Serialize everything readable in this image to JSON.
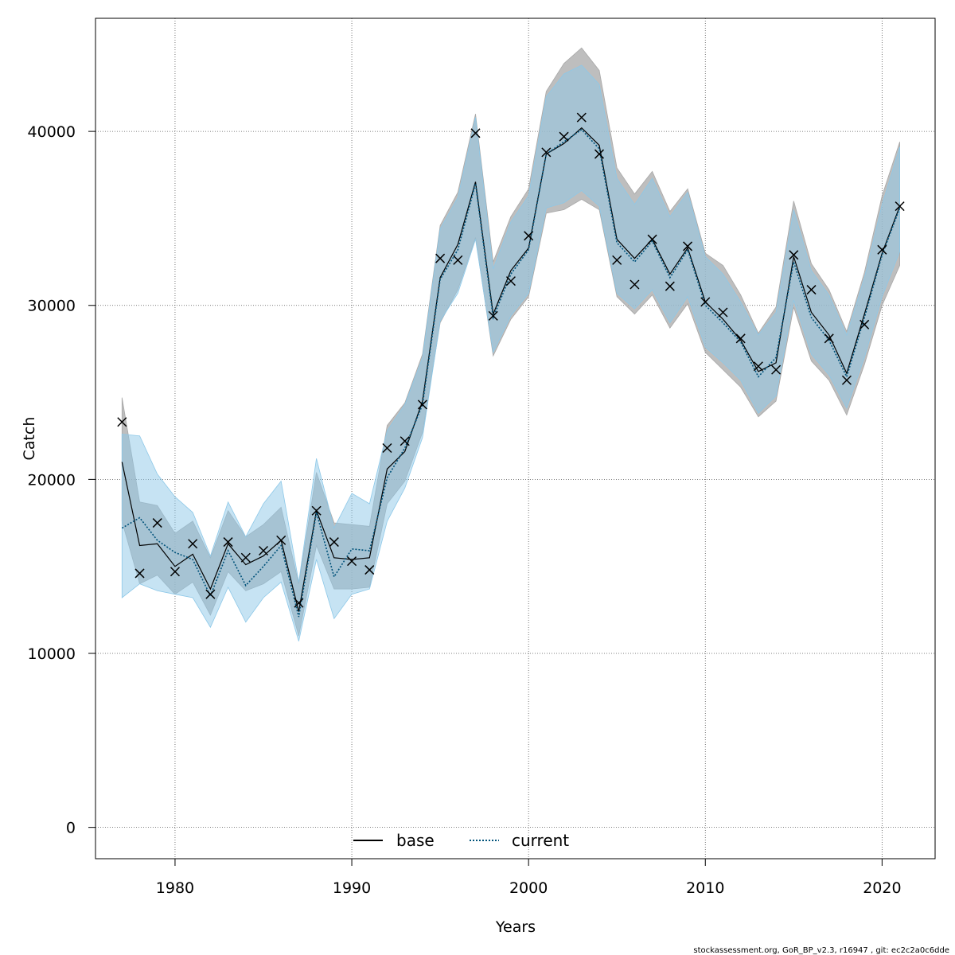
{
  "chart_data": {
    "type": "line",
    "xlabel": "Years",
    "ylabel": "Catch",
    "xlim": [
      1975.5,
      2023.0
    ],
    "ylim": [
      -1800,
      46500
    ],
    "x_ticks": [
      1980,
      1990,
      2000,
      2010,
      2020
    ],
    "y_ticks": [
      0,
      10000,
      20000,
      30000,
      40000
    ],
    "grid": true,
    "legend_position": "bottom-center",
    "x": [
      1977,
      1978,
      1979,
      1980,
      1981,
      1982,
      1983,
      1984,
      1985,
      1986,
      1987,
      1988,
      1989,
      1990,
      1991,
      1992,
      1993,
      1994,
      1995,
      1996,
      1997,
      1998,
      1999,
      2000,
      2001,
      2002,
      2003,
      2004,
      2005,
      2006,
      2007,
      2008,
      2009,
      2010,
      2011,
      2012,
      2013,
      2014,
      2015,
      2016,
      2017,
      2018,
      2019,
      2020,
      2021
    ],
    "series": [
      {
        "name": "base",
        "color": "#000000",
        "band_color": "#a8a8a8",
        "values": [
          21000,
          16200,
          16300,
          15000,
          15700,
          13700,
          16300,
          15100,
          15600,
          16500,
          12400,
          18200,
          15500,
          15400,
          15500,
          20600,
          21600,
          24500,
          31600,
          33500,
          37100,
          29500,
          32000,
          33300,
          38700,
          39300,
          40200,
          39200,
          33800,
          32700,
          33800,
          31800,
          33300,
          30200,
          29200,
          28000,
          26200,
          26700,
          32800,
          29600,
          28300,
          26100,
          29500,
          33000,
          35700
        ],
        "lower": [
          17600,
          14000,
          14500,
          13400,
          14100,
          12200,
          14700,
          13600,
          14000,
          14700,
          11000,
          16200,
          13700,
          13700,
          13800,
          18600,
          19900,
          22700,
          29000,
          30900,
          33900,
          27100,
          29200,
          30500,
          35300,
          35500,
          36100,
          35500,
          30500,
          29500,
          30600,
          28700,
          30100,
          27300,
          26300,
          25300,
          23600,
          24500,
          29900,
          26800,
          25700,
          23700,
          26600,
          30000,
          32300
        ],
        "upper": [
          24700,
          18700,
          18500,
          16900,
          17600,
          15500,
          18200,
          16700,
          17400,
          18400,
          14000,
          20400,
          17500,
          17400,
          17300,
          23100,
          24400,
          27200,
          34600,
          36500,
          41000,
          32500,
          35100,
          36700,
          42300,
          43900,
          44800,
          43500,
          37900,
          36400,
          37700,
          35400,
          36700,
          33000,
          32300,
          30600,
          28400,
          29900,
          36000,
          32400,
          30900,
          28500,
          31900,
          36300,
          39400
        ]
      },
      {
        "name": "current",
        "color": "#00527a",
        "band_color": "#8dc8e8",
        "values": [
          17200,
          17800,
          16500,
          15800,
          15400,
          13300,
          15900,
          13900,
          15000,
          16200,
          12100,
          18100,
          14400,
          16000,
          15900,
          20100,
          21800,
          24300,
          31500,
          33200,
          37000,
          29300,
          31800,
          33200,
          38700,
          39400,
          40100,
          39000,
          33600,
          32500,
          33700,
          31600,
          33200,
          30000,
          29000,
          27900,
          25900,
          27000,
          32500,
          29300,
          28000,
          25900,
          29300,
          32900,
          35600
        ],
        "lower": [
          13200,
          14000,
          13600,
          13400,
          13200,
          11500,
          13800,
          11800,
          13200,
          14100,
          10700,
          15400,
          12000,
          13400,
          13700,
          17600,
          19500,
          22400,
          29100,
          30700,
          33800,
          27300,
          29400,
          30700,
          35600,
          35900,
          36600,
          35700,
          30700,
          29800,
          30900,
          29000,
          30500,
          27600,
          26700,
          25700,
          23800,
          24800,
          30300,
          27200,
          26000,
          24100,
          27000,
          30500,
          33100
        ],
        "upper": [
          22600,
          22500,
          20300,
          19000,
          18100,
          15600,
          18700,
          16700,
          18600,
          19900,
          14100,
          21200,
          17200,
          19200,
          18600,
          22800,
          24300,
          27000,
          34400,
          36200,
          40800,
          32100,
          34800,
          36300,
          42000,
          43300,
          43800,
          42700,
          37300,
          35800,
          37300,
          35100,
          36500,
          32800,
          31800,
          30200,
          28300,
          29600,
          35500,
          32000,
          30600,
          28300,
          31600,
          35800,
          39100
        ]
      }
    ],
    "observed": {
      "marker": "x",
      "values": [
        23300,
        14600,
        17500,
        14700,
        16300,
        13400,
        16400,
        15500,
        15900,
        16500,
        12900,
        18200,
        16400,
        15300,
        14800,
        21800,
        22200,
        24300,
        32700,
        32600,
        39900,
        29400,
        31400,
        34000,
        38800,
        39700,
        40800,
        38700,
        32600,
        31200,
        33800,
        31100,
        33400,
        30200,
        29600,
        28100,
        26500,
        26300,
        32900,
        30900,
        28100,
        25700,
        28900,
        33200,
        35700
      ]
    }
  },
  "legend": {
    "items": [
      {
        "label": "base",
        "style": "solid"
      },
      {
        "label": "current",
        "style": "dotted"
      }
    ]
  },
  "footer": {
    "text": "stockassessment.org, GoR_BP_v2.3, r16947 , git: ec2c2a0c6dde"
  }
}
